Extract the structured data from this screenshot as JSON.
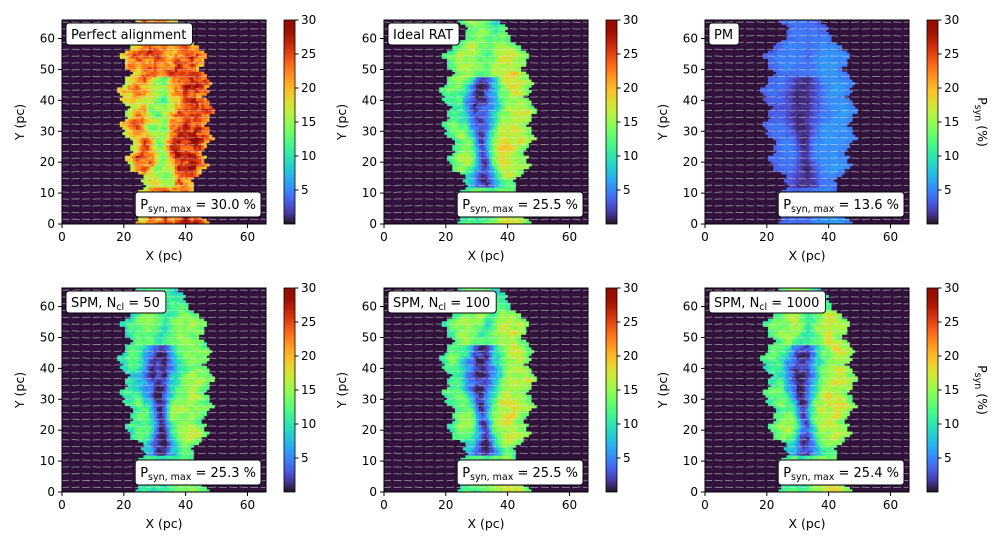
{
  "figure": {
    "colorbar_label": "P",
    "colorbar_label_sub": "syn",
    "colorbar_label_unit": " (%)",
    "stat_prefix": "P",
    "stat_sub": "syn, max",
    "stat_eq": " = "
  },
  "chart_data": [
    {
      "type": "heatmap",
      "title": "Perfect alignment",
      "title_main": "Perfect alignment",
      "title_sub": "",
      "title_tail": "",
      "xlabel": "X (pc)",
      "ylabel": "Y (pc)",
      "xlim": [
        0,
        66
      ],
      "ylim": [
        0,
        66
      ],
      "xticks": [
        0,
        20,
        40,
        60
      ],
      "yticks": [
        0,
        10,
        20,
        30,
        40,
        50,
        60
      ],
      "colorbar": {
        "range": [
          0,
          30
        ],
        "ticks": [
          5,
          10,
          15,
          20,
          25,
          30
        ],
        "colormap": "turbo",
        "label_shown": false
      },
      "max_value_text": "30.0 %",
      "max_value": 30.0,
      "cloud": {
        "base": 0.82,
        "spine": 0.35,
        "noise": 0.22,
        "vmax": 30.0
      }
    },
    {
      "type": "heatmap",
      "title": "Ideal RAT",
      "title_main": "Ideal RAT",
      "title_sub": "",
      "title_tail": "",
      "xlabel": "X (pc)",
      "ylabel": "Y (pc)",
      "xlim": [
        0,
        66
      ],
      "ylim": [
        0,
        66
      ],
      "xticks": [
        0,
        20,
        40,
        60
      ],
      "yticks": [
        0,
        10,
        20,
        30,
        40,
        50,
        60
      ],
      "colorbar": {
        "range": [
          0,
          30
        ],
        "ticks": [
          5,
          10,
          15,
          20,
          25,
          30
        ],
        "colormap": "turbo",
        "label_shown": false
      },
      "max_value_text": "25.5 %",
      "max_value": 25.5,
      "cloud": {
        "base": 0.62,
        "spine": 0.55,
        "noise": 0.14,
        "vmax": 25.5
      }
    },
    {
      "type": "heatmap",
      "title": "PM",
      "title_main": "PM",
      "title_sub": "",
      "title_tail": "",
      "xlabel": "X (pc)",
      "ylabel": "Y (pc)",
      "xlim": [
        0,
        66
      ],
      "ylim": [
        0,
        66
      ],
      "xticks": [
        0,
        20,
        40,
        60
      ],
      "yticks": [
        0,
        10,
        20,
        30,
        40,
        50,
        60
      ],
      "colorbar": {
        "range": [
          0,
          30
        ],
        "ticks": [
          5,
          10,
          15,
          20,
          25,
          30
        ],
        "colormap": "turbo",
        "label_shown": true
      },
      "max_value_text": "13.6 %",
      "max_value": 13.6,
      "cloud": {
        "base": 0.36,
        "spine": 0.28,
        "noise": 0.06,
        "vmax": 13.6
      }
    },
    {
      "type": "heatmap",
      "title": "SPM, Ncl = 50",
      "title_main": "SPM, N",
      "title_sub": "cl",
      "title_tail": " = 50",
      "xlabel": "X (pc)",
      "ylabel": "Y (pc)",
      "xlim": [
        0,
        66
      ],
      "ylim": [
        0,
        66
      ],
      "xticks": [
        0,
        20,
        40,
        60
      ],
      "yticks": [
        0,
        10,
        20,
        30,
        40,
        50,
        60
      ],
      "colorbar": {
        "range": [
          0,
          30
        ],
        "ticks": [
          5,
          10,
          15,
          20,
          25,
          30
        ],
        "colormap": "turbo",
        "label_shown": false
      },
      "max_value_text": "25.3 %",
      "max_value": 25.3,
      "cloud": {
        "base": 0.55,
        "spine": 0.5,
        "noise": 0.14,
        "vmax": 25.3
      }
    },
    {
      "type": "heatmap",
      "title": "SPM, Ncl = 100",
      "title_main": "SPM, N",
      "title_sub": "cl",
      "title_tail": " = 100",
      "xlabel": "X (pc)",
      "ylabel": "Y (pc)",
      "xlim": [
        0,
        66
      ],
      "ylim": [
        0,
        66
      ],
      "xticks": [
        0,
        20,
        40,
        60
      ],
      "yticks": [
        0,
        10,
        20,
        30,
        40,
        50,
        60
      ],
      "colorbar": {
        "range": [
          0,
          30
        ],
        "ticks": [
          5,
          10,
          15,
          20,
          25,
          30
        ],
        "colormap": "turbo",
        "label_shown": false
      },
      "max_value_text": "25.5 %",
      "max_value": 25.5,
      "cloud": {
        "base": 0.6,
        "spine": 0.55,
        "noise": 0.14,
        "vmax": 25.5
      }
    },
    {
      "type": "heatmap",
      "title": "SPM, Ncl = 1000",
      "title_main": "SPM, N",
      "title_sub": "cl",
      "title_tail": " = 1000",
      "xlabel": "X (pc)",
      "ylabel": "Y (pc)",
      "xlim": [
        0,
        66
      ],
      "ylim": [
        0,
        66
      ],
      "xticks": [
        0,
        20,
        40,
        60
      ],
      "yticks": [
        0,
        10,
        20,
        30,
        40,
        50,
        60
      ],
      "colorbar": {
        "range": [
          0,
          30
        ],
        "ticks": [
          5,
          10,
          15,
          20,
          25,
          30
        ],
        "colormap": "turbo",
        "label_shown": true
      },
      "max_value_text": "25.4 %",
      "max_value": 25.4,
      "cloud": {
        "base": 0.61,
        "spine": 0.55,
        "noise": 0.14,
        "vmax": 25.4
      }
    }
  ]
}
